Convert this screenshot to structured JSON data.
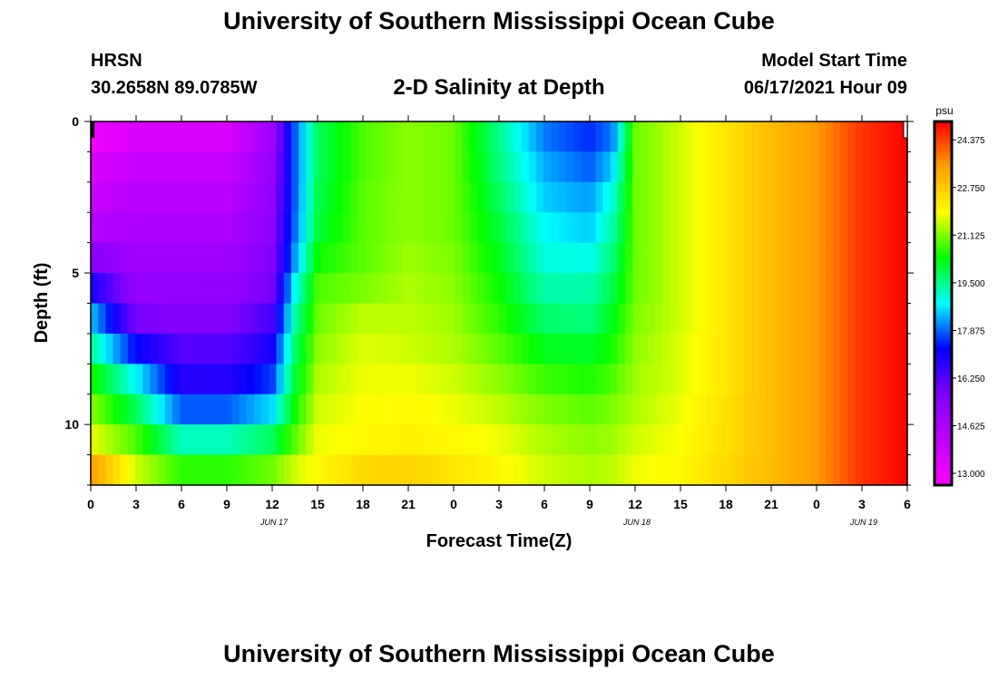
{
  "header": {
    "title": "University of Southern Mississippi Ocean Cube",
    "station": "HRSN",
    "coords": "30.2658N  89.0785W",
    "plot_title": "2-D Salinity at Depth",
    "start_label": "Model Start Time",
    "start_value": "06/17/2021 Hour 09"
  },
  "footer": {
    "title": "University of Southern Mississippi Ocean Cube"
  },
  "chart_data": {
    "type": "heatmap",
    "title": "2-D Salinity at Depth",
    "xlabel": "Forecast Time(Z)",
    "ylabel": "Depth (ft)",
    "x_hours": [
      0,
      54
    ],
    "ylim": [
      0,
      12
    ],
    "x_tick_labels": [
      "0",
      "3",
      "6",
      "9",
      "12",
      "15",
      "18",
      "21",
      "0",
      "3",
      "6",
      "9",
      "12",
      "15",
      "18",
      "21",
      "0",
      "3",
      "6"
    ],
    "y_ticks": [
      0,
      5,
      10
    ],
    "date_labels": [
      {
        "label": "JUN 17",
        "hour": 12
      },
      {
        "label": "JUN 18",
        "hour": 36
      },
      {
        "label": "JUN 19",
        "hour": 51
      }
    ],
    "colorbar": {
      "units": "psu",
      "range": [
        12.6,
        25.0
      ],
      "ticks": [
        "13.000",
        "14.625",
        "16.250",
        "17.875",
        "19.500",
        "21.125",
        "22.750",
        "24.375"
      ],
      "tick_values": [
        13.0,
        14.625,
        16.25,
        17.875,
        19.5,
        21.125,
        22.75,
        24.375
      ],
      "colors": [
        "#ff00ff",
        "#c000ff",
        "#8000ff",
        "#0000ff",
        "#00ffff",
        "#00ff00",
        "#ffff00",
        "#ffa000",
        "#ff0000"
      ]
    },
    "salinity": {
      "depth_layers": [
        0.5,
        1.5,
        2.5,
        3.5,
        4.5,
        5.5,
        6.5,
        7.5,
        8.5,
        9.5,
        10.5,
        11.5
      ],
      "timeline_hours": [
        0,
        3,
        6,
        9,
        12,
        13.5,
        15,
        18,
        21,
        24,
        27,
        30,
        33,
        34.5,
        36,
        39,
        42,
        45,
        48,
        51,
        54
      ],
      "rows": [
        [
          13.0,
          13.5,
          13.5,
          13.5,
          15.0,
          17.8,
          19.8,
          20.8,
          21.2,
          21.0,
          19.5,
          18.0,
          17.5,
          18.0,
          21.0,
          21.6,
          22.3,
          23.0,
          23.5,
          24.5,
          25.0
        ],
        [
          13.5,
          14.0,
          14.0,
          14.0,
          15.2,
          17.8,
          19.8,
          20.8,
          21.2,
          21.0,
          19.6,
          18.3,
          17.8,
          18.5,
          21.0,
          21.6,
          22.3,
          23.0,
          23.5,
          24.5,
          25.0
        ],
        [
          14.0,
          14.3,
          14.3,
          14.3,
          15.3,
          17.8,
          19.9,
          20.9,
          21.2,
          21.0,
          19.8,
          18.5,
          18.2,
          19.0,
          21.0,
          21.6,
          22.3,
          23.0,
          23.5,
          24.5,
          25.0
        ],
        [
          14.5,
          14.6,
          14.6,
          14.6,
          15.4,
          17.9,
          20.0,
          20.9,
          21.2,
          21.0,
          20.0,
          18.8,
          18.5,
          19.3,
          21.0,
          21.6,
          22.3,
          23.0,
          23.5,
          24.5,
          25.0
        ],
        [
          15.5,
          14.9,
          14.9,
          14.9,
          15.6,
          18.2,
          20.4,
          20.9,
          21.3,
          21.1,
          20.2,
          19.0,
          18.9,
          19.6,
          21.0,
          21.6,
          22.3,
          23.0,
          23.5,
          24.5,
          25.0
        ],
        [
          17.0,
          15.2,
          15.2,
          15.2,
          15.8,
          18.8,
          20.8,
          21.1,
          21.4,
          21.2,
          20.4,
          19.3,
          19.3,
          19.9,
          21.0,
          21.6,
          22.3,
          23.0,
          23.5,
          24.5,
          25.0
        ],
        [
          18.5,
          15.8,
          15.6,
          15.6,
          16.4,
          19.3,
          21.0,
          21.5,
          21.5,
          21.3,
          20.6,
          19.7,
          19.6,
          20.2,
          21.1,
          21.6,
          22.3,
          23.0,
          23.5,
          24.5,
          25.0
        ],
        [
          19.5,
          17.2,
          16.2,
          16.2,
          17.0,
          19.7,
          21.2,
          21.7,
          21.6,
          21.4,
          20.9,
          20.2,
          20.1,
          20.5,
          21.2,
          21.7,
          22.3,
          23.0,
          23.5,
          24.5,
          25.0
        ],
        [
          20.5,
          18.8,
          16.8,
          16.8,
          17.6,
          20.0,
          21.4,
          21.8,
          21.8,
          21.6,
          21.2,
          20.7,
          20.5,
          20.8,
          21.3,
          21.7,
          22.3,
          23.0,
          23.5,
          24.5,
          25.0
        ],
        [
          21.2,
          19.8,
          17.8,
          17.8,
          18.6,
          20.4,
          21.6,
          21.9,
          22.0,
          21.8,
          21.5,
          21.1,
          20.9,
          21.1,
          21.4,
          21.8,
          22.4,
          23.0,
          23.5,
          24.5,
          25.0
        ],
        [
          21.8,
          20.8,
          19.2,
          19.2,
          19.8,
          20.9,
          21.8,
          22.0,
          22.1,
          22.0,
          21.8,
          21.4,
          21.2,
          21.3,
          21.6,
          21.9,
          22.4,
          23.0,
          23.5,
          24.5,
          25.0
        ],
        [
          23.5,
          21.6,
          20.6,
          20.6,
          21.0,
          21.6,
          22.0,
          22.5,
          22.6,
          22.3,
          22.0,
          21.6,
          21.4,
          21.5,
          21.8,
          22.0,
          22.5,
          23.0,
          23.5,
          24.5,
          25.0
        ]
      ]
    }
  }
}
